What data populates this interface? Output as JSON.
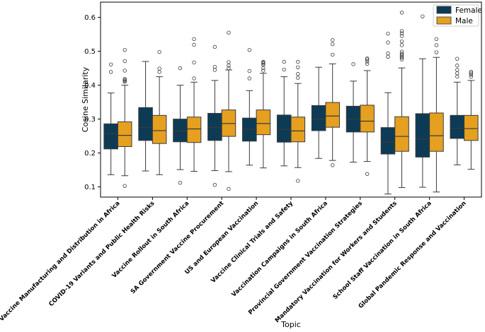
{
  "chart_data": {
    "type": "boxplot",
    "xlabel": "Topic",
    "ylabel": "Cosine Similarity",
    "ylim": [
      0.07,
      0.645
    ],
    "yticks": [
      "0.1",
      "0.2",
      "0.3",
      "0.4",
      "0.5",
      "0.6"
    ],
    "legend": {
      "placement": "top-right"
    },
    "categories": [
      "Vaccine Manufacturing and Distribution in Africa",
      "COVID-19 Variants and Public Health Risks",
      "Vaccine Rollout in South Africa",
      "SA Government Vaccine Procurement",
      "US and European Vaccination",
      "Vaccine Clinical Trials and Safety",
      "Vaccination Campaigns in South Africa",
      "Provincial Government Vaccination Strategies",
      "Mandatory Vaccination for Workers and Students",
      "School Staff Vaccination in South Africa",
      "Global Pandemic Response and Vaccination"
    ],
    "series": [
      {
        "name": "Female",
        "color": "#0d3b56",
        "boxes": [
          {
            "min": 0.136,
            "q1": 0.212,
            "median": 0.257,
            "q3": 0.286,
            "max": 0.377,
            "outliers": [
              0.439,
              0.461
            ]
          },
          {
            "min": 0.147,
            "q1": 0.237,
            "median": 0.275,
            "q3": 0.334,
            "max": 0.47,
            "outliers": []
          },
          {
            "min": 0.151,
            "q1": 0.233,
            "median": 0.265,
            "q3": 0.3,
            "max": 0.4,
            "outliers": [
              0.112,
              0.45
            ]
          },
          {
            "min": 0.148,
            "q1": 0.237,
            "median": 0.275,
            "q3": 0.317,
            "max": 0.414,
            "outliers": [
              0.106,
              0.445,
              0.454,
              0.513
            ]
          },
          {
            "min": 0.164,
            "q1": 0.235,
            "median": 0.27,
            "q3": 0.303,
            "max": 0.384,
            "outliers": [
              0.42,
              0.442,
              0.504
            ]
          },
          {
            "min": 0.162,
            "q1": 0.232,
            "median": 0.269,
            "q3": 0.312,
            "max": 0.425,
            "outliers": [
              0.446,
              0.469
            ]
          },
          {
            "min": 0.184,
            "q1": 0.266,
            "median": 0.3,
            "q3": 0.34,
            "max": 0.453,
            "outliers": []
          },
          {
            "min": 0.173,
            "q1": 0.262,
            "median": 0.299,
            "q3": 0.338,
            "max": 0.412,
            "outliers": [
              0.462
            ]
          },
          {
            "min": 0.079,
            "q1": 0.197,
            "median": 0.232,
            "q3": 0.275,
            "max": 0.378,
            "outliers": [
              0.484,
              0.494,
              0.526,
              0.552
            ]
          },
          {
            "min": 0.099,
            "q1": 0.188,
            "median": 0.241,
            "q3": 0.316,
            "max": 0.478,
            "outliers": [
              0.603
            ]
          },
          {
            "min": 0.165,
            "q1": 0.243,
            "median": 0.273,
            "q3": 0.311,
            "max": 0.409,
            "outliers": [
              0.425,
              0.435,
              0.445,
              0.458,
              0.478
            ]
          }
        ]
      },
      {
        "name": "Male",
        "color": "#e5a020",
        "boxes": [
          {
            "min": 0.133,
            "q1": 0.219,
            "median": 0.252,
            "q3": 0.292,
            "max": 0.4,
            "outliers": [
              0.103,
              0.41,
              0.413,
              0.416,
              0.418,
              0.443,
              0.471,
              0.504
            ]
          },
          {
            "min": 0.136,
            "q1": 0.228,
            "median": 0.266,
            "q3": 0.311,
            "max": 0.425,
            "outliers": [
              0.439,
              0.449,
              0.498
            ]
          },
          {
            "min": 0.146,
            "q1": 0.231,
            "median": 0.271,
            "q3": 0.306,
            "max": 0.409,
            "outliers": [
              0.42,
              0.467,
              0.519,
              0.536
            ]
          },
          {
            "min": 0.145,
            "q1": 0.249,
            "median": 0.287,
            "q3": 0.327,
            "max": 0.445,
            "outliers": [
              0.094,
              0.45,
              0.458,
              0.468,
              0.555
            ]
          },
          {
            "min": 0.156,
            "q1": 0.254,
            "median": 0.287,
            "q3": 0.327,
            "max": 0.435,
            "outliers": [
              0.443,
              0.45,
              0.46,
              0.464,
              0.467,
              0.469
            ]
          },
          {
            "min": 0.157,
            "q1": 0.233,
            "median": 0.265,
            "q3": 0.306,
            "max": 0.405,
            "outliers": [
              0.118,
              0.422,
              0.433,
              0.453,
              0.469
            ]
          },
          {
            "min": 0.178,
            "q1": 0.276,
            "median": 0.309,
            "q3": 0.349,
            "max": 0.463,
            "outliers": [
              0.164,
              0.49,
              0.521,
              0.533
            ]
          },
          {
            "min": 0.175,
            "q1": 0.262,
            "median": 0.294,
            "q3": 0.341,
            "max": 0.443,
            "outliers": [
              0.138,
              0.463,
              0.47,
              0.476,
              0.479
            ]
          },
          {
            "min": 0.098,
            "q1": 0.205,
            "median": 0.249,
            "q3": 0.307,
            "max": 0.451,
            "outliers": [
              0.476,
              0.481,
              0.485,
              0.489,
              0.493,
              0.499,
              0.518,
              0.529,
              0.545,
              0.553,
              0.56,
              0.614
            ]
          },
          {
            "min": 0.085,
            "q1": 0.205,
            "median": 0.251,
            "q3": 0.318,
            "max": 0.482,
            "outliers": [
              0.497,
              0.518,
              0.536
            ]
          },
          {
            "min": 0.152,
            "q1": 0.237,
            "median": 0.272,
            "q3": 0.311,
            "max": 0.414,
            "outliers": [
              0.425,
              0.431,
              0.436,
              0.44
            ]
          }
        ]
      }
    ]
  }
}
